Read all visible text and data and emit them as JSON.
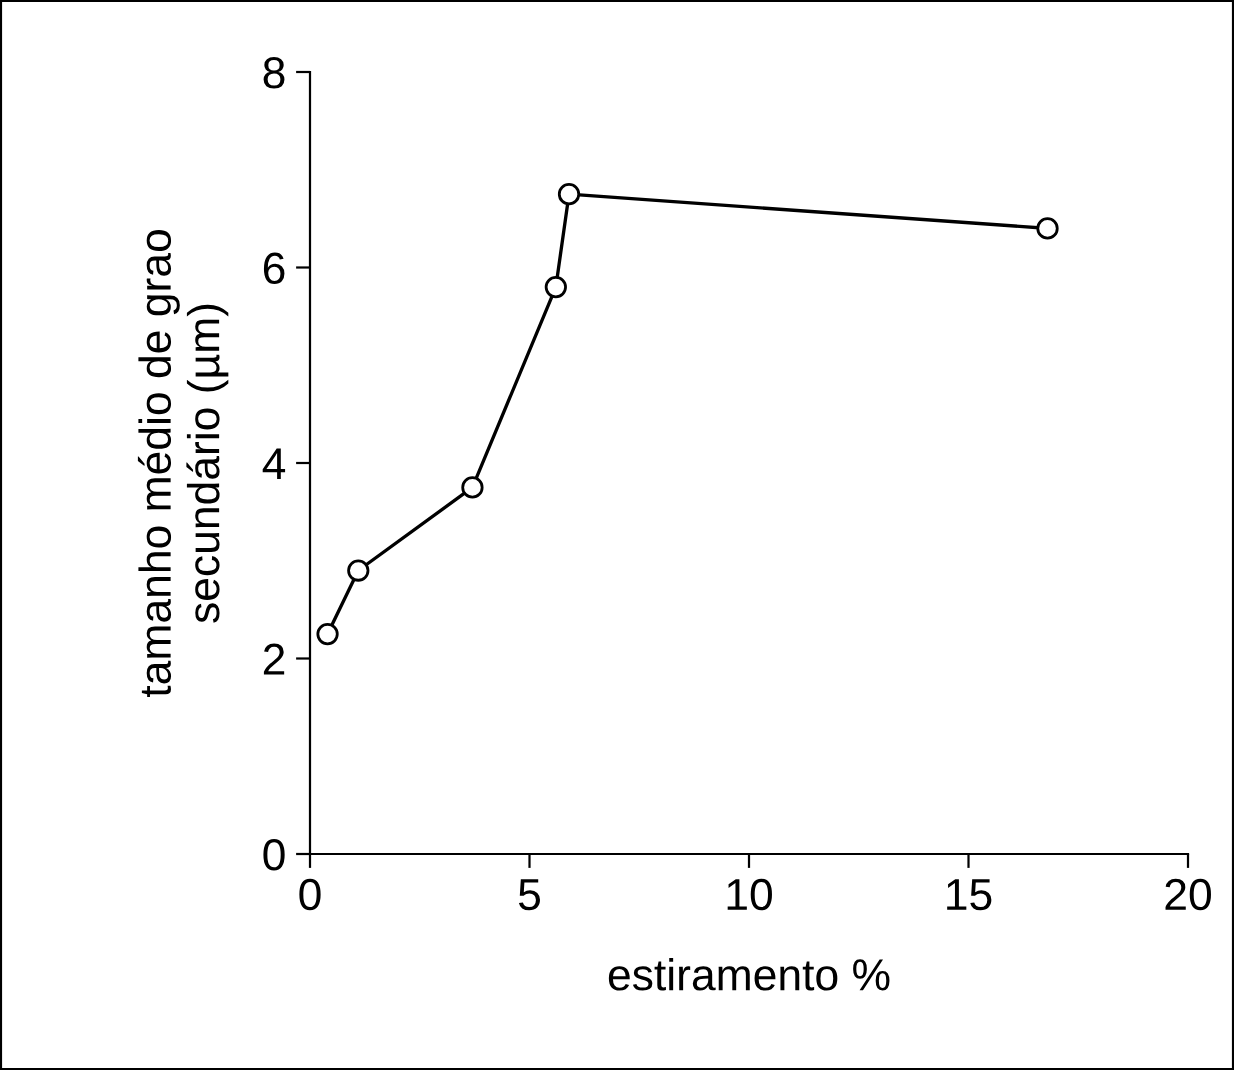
{
  "chart_data": {
    "type": "line",
    "xlabel": "estiramento %",
    "ylabel": "tamanho médio de grao\nsecundário (µm)",
    "x": [
      0.4,
      1.1,
      3.7,
      5.6,
      5.9,
      16.8
    ],
    "series": [
      {
        "color": "#000000",
        "values": [
          2.25,
          2.9,
          3.75,
          5.8,
          6.75,
          6.4
        ]
      }
    ],
    "xlim": [
      0,
      20
    ],
    "xticks": [
      0,
      5,
      10,
      15,
      20
    ],
    "ylim": [
      0,
      8
    ],
    "yticks": [
      0,
      2,
      4,
      6,
      8
    ],
    "grid": false,
    "legend": false,
    "marker": "circle",
    "line_style": "solid"
  }
}
